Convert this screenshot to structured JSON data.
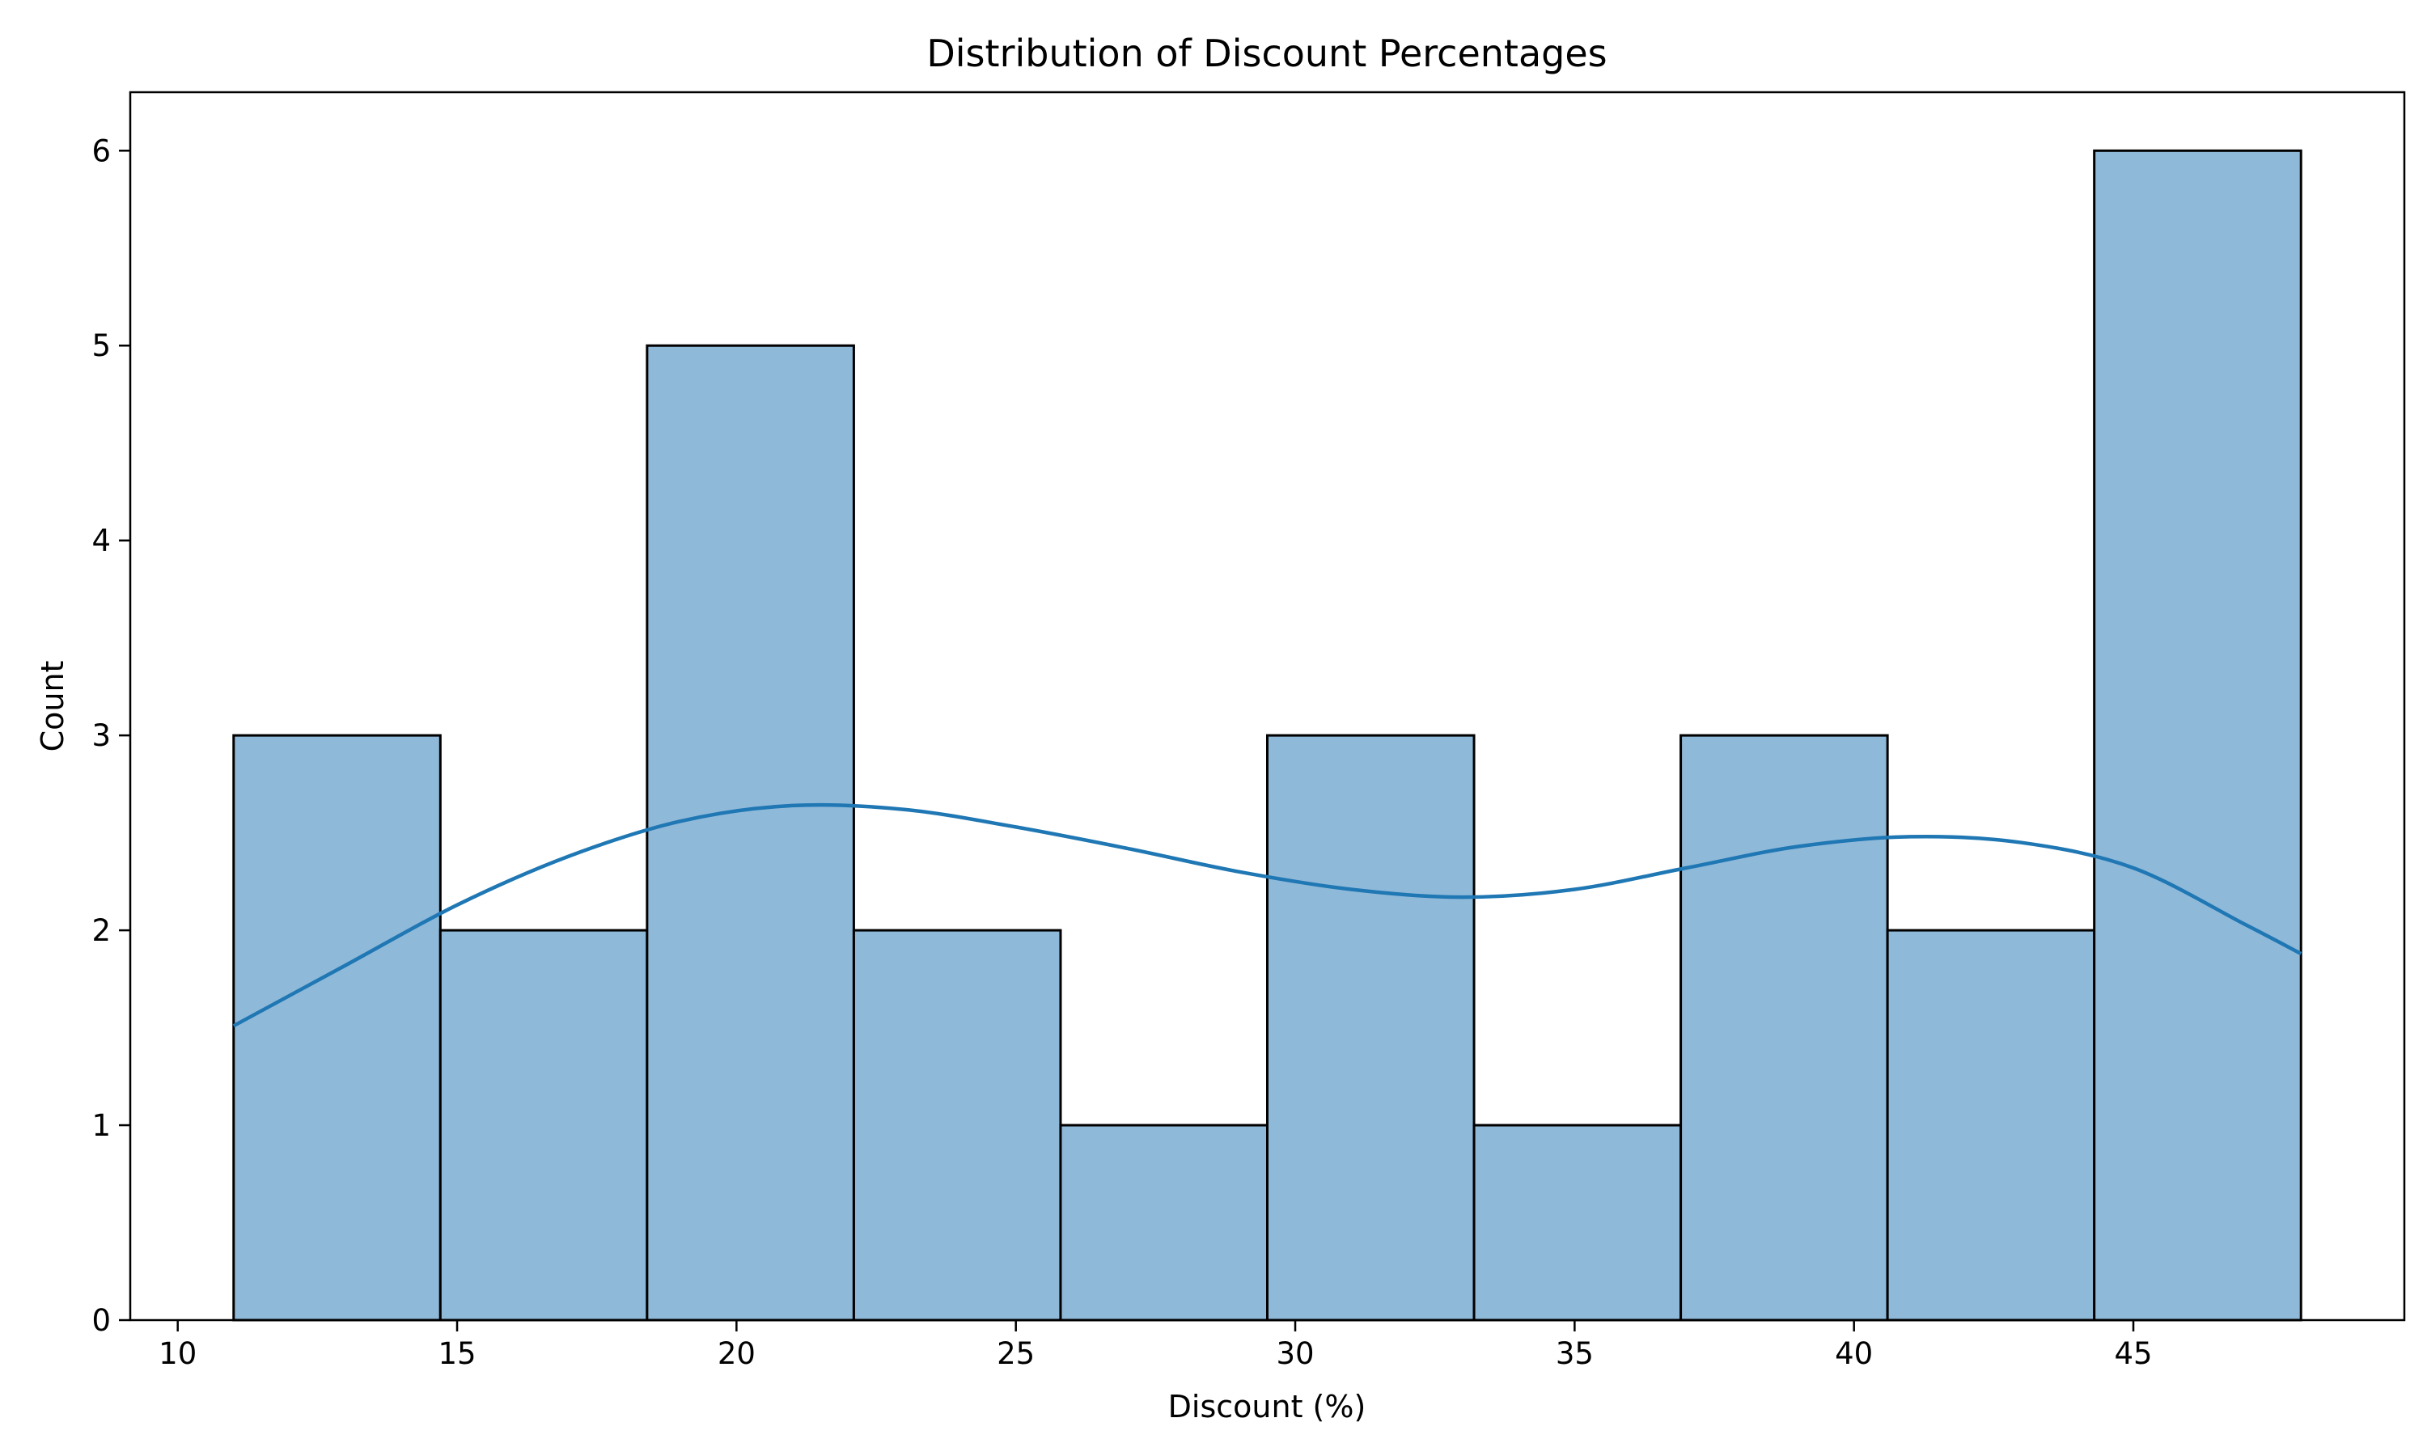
{
  "chart_data": {
    "type": "bar",
    "title": "Distribution of Discount Percentages",
    "xlabel": "Discount (%)",
    "ylabel": "Count",
    "bins": [
      {
        "start": 11.0,
        "end": 14.7,
        "count": 3
      },
      {
        "start": 14.7,
        "end": 18.4,
        "count": 2
      },
      {
        "start": 18.4,
        "end": 22.1,
        "count": 5
      },
      {
        "start": 22.1,
        "end": 25.8,
        "count": 2
      },
      {
        "start": 25.8,
        "end": 29.5,
        "count": 1
      },
      {
        "start": 29.5,
        "end": 33.2,
        "count": 3
      },
      {
        "start": 33.2,
        "end": 36.9,
        "count": 1
      },
      {
        "start": 36.9,
        "end": 40.6,
        "count": 3
      },
      {
        "start": 40.6,
        "end": 44.3,
        "count": 2
      },
      {
        "start": 44.3,
        "end": 48.0,
        "count": 6
      }
    ],
    "kde": {
      "x": [
        11,
        13,
        15,
        17,
        19,
        21,
        23,
        25,
        27,
        29,
        31,
        33,
        35,
        37,
        39,
        41,
        43,
        45,
        47,
        48
      ],
      "y": [
        1.51,
        1.82,
        2.13,
        2.38,
        2.56,
        2.64,
        2.62,
        2.53,
        2.42,
        2.3,
        2.21,
        2.17,
        2.21,
        2.32,
        2.43,
        2.48,
        2.45,
        2.32,
        2.03,
        1.88
      ]
    },
    "xticks": [
      10,
      15,
      20,
      25,
      30,
      35,
      40,
      45
    ],
    "yticks": [
      0,
      1,
      2,
      3,
      4,
      5,
      6
    ],
    "xlim": [
      9.15,
      49.85
    ],
    "ylim": [
      0,
      6.3
    ],
    "grid": false,
    "colors": {
      "bar_fill": "#8fb9d9",
      "bar_edge": "#000000",
      "kde_line": "#1f77b4"
    }
  }
}
